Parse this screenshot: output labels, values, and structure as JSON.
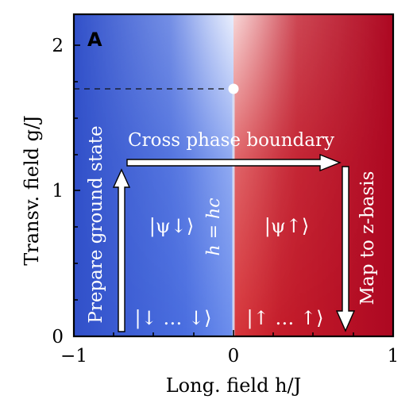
{
  "panel_label": "A",
  "axes": {
    "xlabel": "Long. field h/J",
    "ylabel": "Transv. field g/J",
    "xlim": [
      -1,
      1
    ],
    "ylim": [
      0,
      2.2
    ],
    "xticks": [
      "−1",
      "0",
      "1"
    ],
    "yticks": [
      "0",
      "1",
      "2"
    ]
  },
  "colors": {
    "left_phase": "#3b5bd6",
    "right_phase": "#b2091f",
    "arrow_fill": "#ffffff",
    "text_on_plot": "#ffffff",
    "axis": "#000000"
  },
  "labels": {
    "top_arrow": "Cross phase boundary",
    "left_arrow": "Prepare ground state",
    "right_arrow": "Map to z-basis",
    "boundary": "h = hc",
    "state_left": "|ψ↓⟩",
    "state_right": "|ψ↑⟩",
    "basis_left": "|↓ … ↓⟩",
    "basis_right": "|↑ … ↑⟩"
  },
  "markers": {
    "critical_point": {
      "h": 0,
      "g": 1.7
    }
  },
  "path": [
    {
      "h": -0.7,
      "g": 0.05
    },
    {
      "h": -0.7,
      "g": 1.2
    },
    {
      "h": 0.7,
      "g": 1.2
    },
    {
      "h": 0.7,
      "g": 0.05
    }
  ]
}
